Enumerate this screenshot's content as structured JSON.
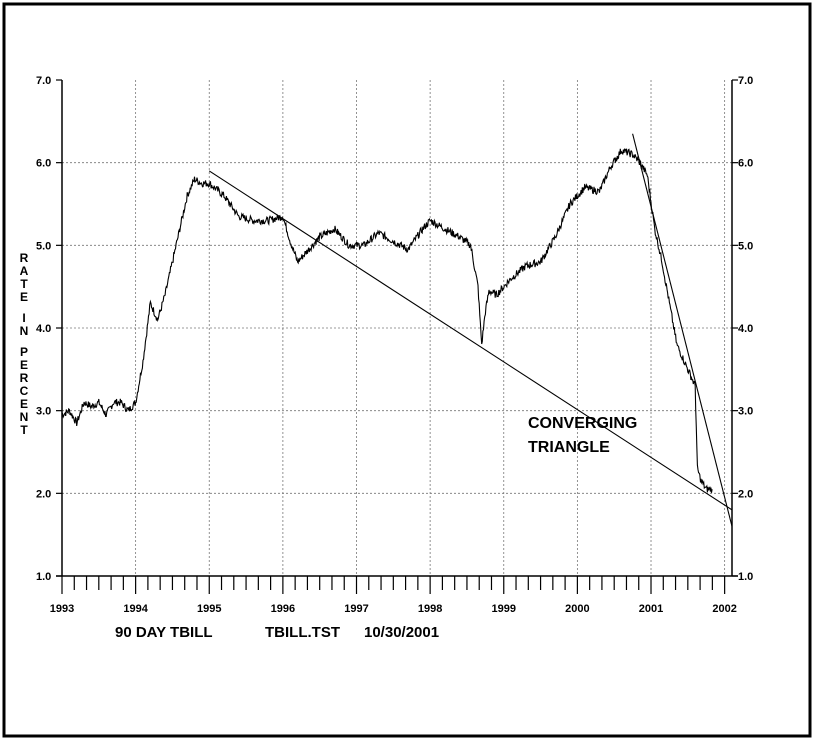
{
  "chart_data": {
    "type": "line",
    "ylabel": "RATE IN PERCENT",
    "ylim": [
      1.0,
      7.0
    ],
    "y_ticks": [
      "1.0",
      "2.0",
      "3.0",
      "4.0",
      "5.0",
      "6.0",
      "7.0"
    ],
    "xlim": [
      1993.0,
      2002.1
    ],
    "x_tick_labels": [
      "1993",
      "1994",
      "1995",
      "1996",
      "1997",
      "1998",
      "1999",
      "2000",
      "2001",
      "2002"
    ],
    "grid": true,
    "footer": {
      "series_title": "90 DAY TBILL",
      "file": "TBILL.TST",
      "date": "10/30/2001"
    },
    "annotation": [
      "CONVERGING",
      "TRIANGLE"
    ],
    "series": [
      {
        "x": [
          1993.0,
          1993.1,
          1993.2,
          1993.3,
          1993.4,
          1993.5,
          1993.6,
          1993.7,
          1993.8,
          1993.9,
          1994.0,
          1994.1,
          1994.2,
          1994.3,
          1994.4,
          1994.5,
          1994.6,
          1994.7,
          1994.8,
          1994.9,
          1995.0,
          1995.2,
          1995.4,
          1995.6,
          1995.8,
          1996.0,
          1996.1,
          1996.2,
          1996.3,
          1996.5,
          1996.7,
          1996.9,
          1997.1,
          1997.3,
          1997.5,
          1997.7,
          1997.9,
          1998.0,
          1998.2,
          1998.4,
          1998.55,
          1998.65,
          1998.7,
          1998.75,
          1998.8,
          1998.9,
          1999.1,
          1999.3,
          1999.5,
          1999.7,
          1999.9,
          2000.1,
          2000.3,
          2000.45,
          2000.6,
          2000.75,
          2000.85,
          2000.95,
          2001.05,
          2001.15,
          2001.25,
          2001.35,
          2001.45,
          2001.55,
          2001.6,
          2001.63,
          2001.68,
          2001.75,
          2001.83
        ],
        "values": [
          2.95,
          3.0,
          2.85,
          3.1,
          3.05,
          3.1,
          2.95,
          3.1,
          3.1,
          3.0,
          3.1,
          3.6,
          4.3,
          4.1,
          4.4,
          4.8,
          5.2,
          5.6,
          5.8,
          5.75,
          5.75,
          5.6,
          5.35,
          5.3,
          5.3,
          5.35,
          5.05,
          4.8,
          4.9,
          5.1,
          5.2,
          5.0,
          5.0,
          5.15,
          5.05,
          4.95,
          5.2,
          5.3,
          5.2,
          5.1,
          5.0,
          4.5,
          3.8,
          4.2,
          4.45,
          4.4,
          4.6,
          4.75,
          4.8,
          5.1,
          5.5,
          5.7,
          5.65,
          5.95,
          6.15,
          6.1,
          6.0,
          5.85,
          5.2,
          4.8,
          4.3,
          3.8,
          3.6,
          3.4,
          3.3,
          2.3,
          2.15,
          2.05,
          2.05
        ]
      }
    ],
    "trendlines": [
      {
        "x": [
          1995.0,
          2002.1
        ],
        "y": [
          5.9,
          1.8
        ]
      },
      {
        "x": [
          2000.75,
          2002.1
        ],
        "y": [
          6.35,
          1.6
        ]
      }
    ]
  }
}
